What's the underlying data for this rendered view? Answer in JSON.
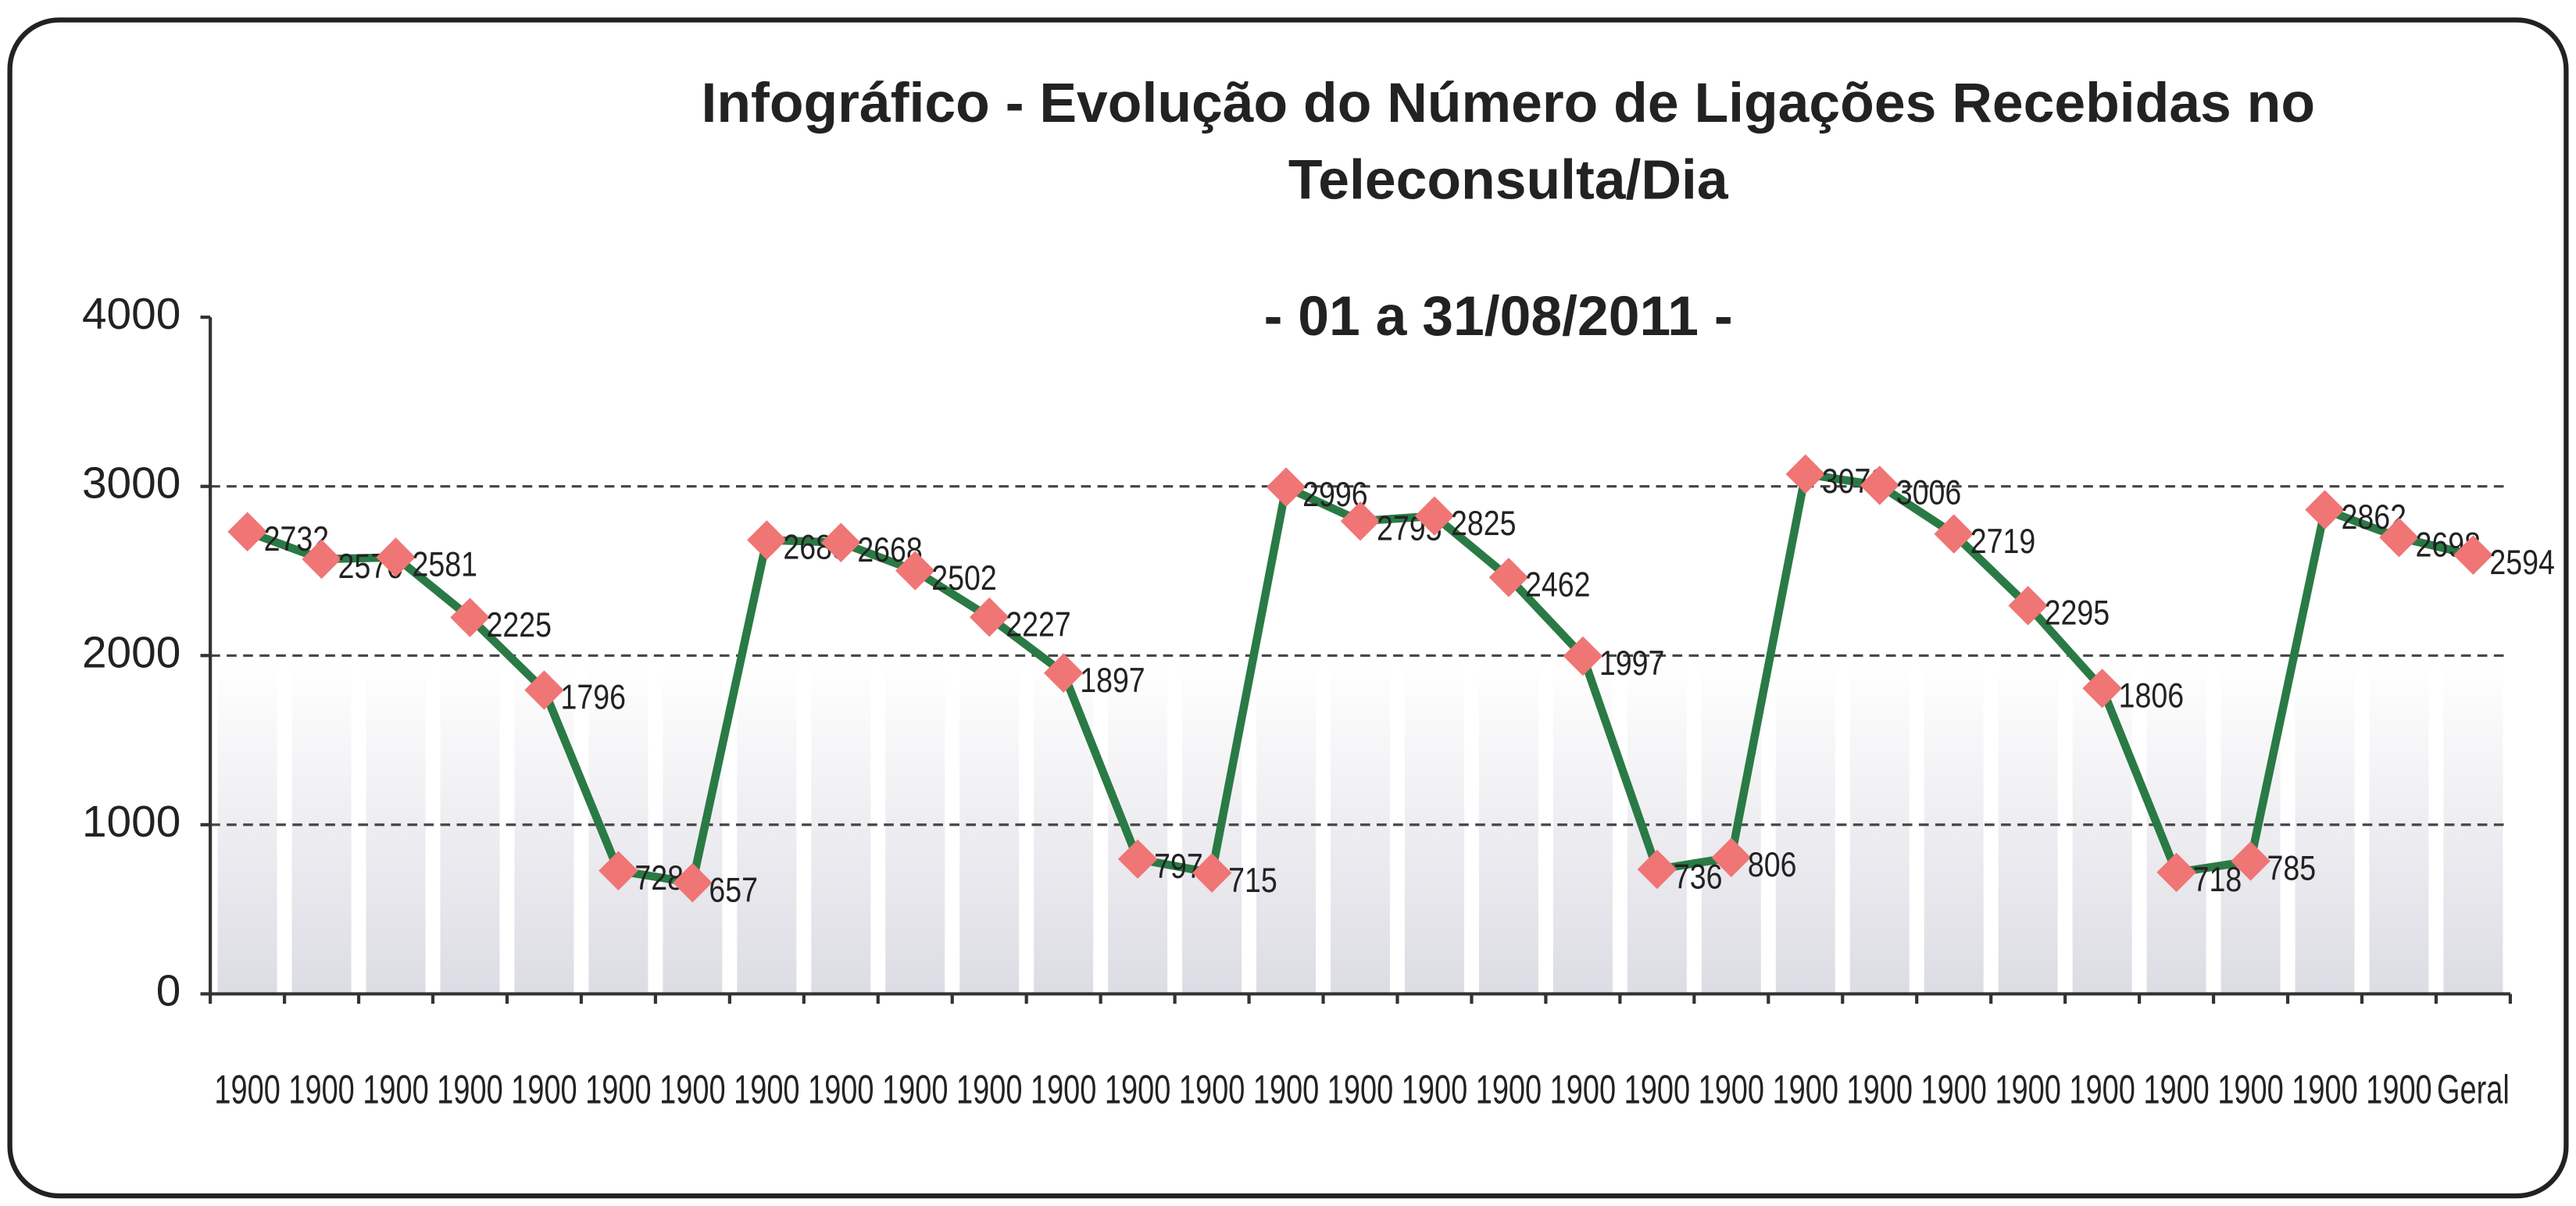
{
  "chart_data": {
    "type": "line",
    "title": "Infográfico - Evolução do Número de Ligações Recebidas no",
    "title_line2": "Teleconsulta/Dia",
    "subtitle": "- 01 a 31/08/2011 -",
    "categories": [
      "1900",
      "1900",
      "1900",
      "1900",
      "1900",
      "1900",
      "1900",
      "1900",
      "1900",
      "1900",
      "1900",
      "1900",
      "1900",
      "1900",
      "1900",
      "1900",
      "1900",
      "1900",
      "1900",
      "1900",
      "1900",
      "1900",
      "1900",
      "1900",
      "1900",
      "1900",
      "1900",
      "1900",
      "1900",
      "1900",
      "Geral"
    ],
    "values": [
      2732,
      2570,
      2581,
      2225,
      1796,
      728,
      657,
      2683,
      2668,
      2502,
      2227,
      1897,
      797,
      715,
      2996,
      2795,
      2825,
      2462,
      1997,
      736,
      806,
      3073,
      3006,
      2719,
      2295,
      1806,
      718,
      785,
      2862,
      2698,
      2594
    ],
    "color": "#2a7a45",
    "marker_color": "#f07575",
    "ylim": [
      0,
      4000
    ],
    "yticks": [
      0,
      1000,
      2000,
      3000,
      4000
    ],
    "grid": true
  }
}
